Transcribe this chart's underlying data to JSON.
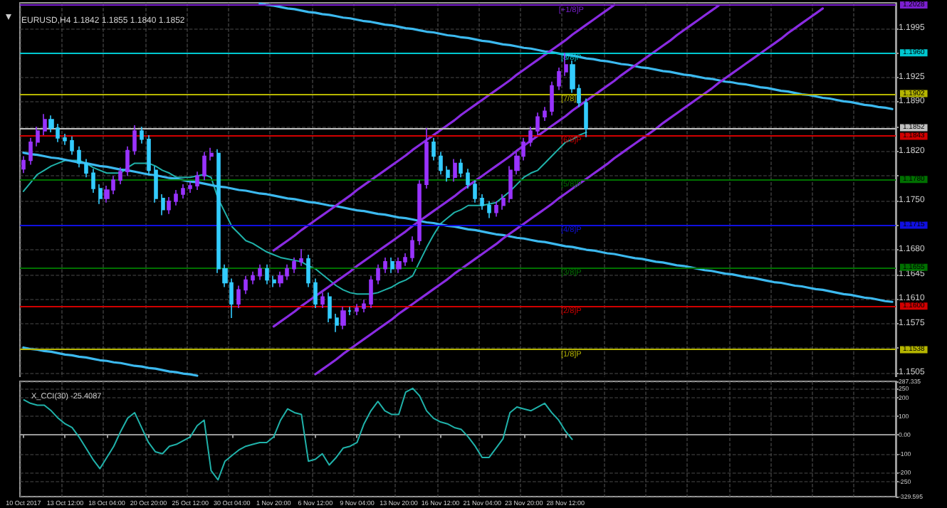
{
  "chart_data": [
    {
      "type": "candlestick",
      "title": "EURUSD,H4 1.1842 1.1855 1.1840 1.1852",
      "categories": [
        "10 Oct 2017",
        null,
        null,
        null,
        null,
        null,
        "13 Oct 12:00",
        null,
        null,
        null,
        null,
        null,
        "18 Oct 04:00",
        null,
        null,
        null,
        null,
        null,
        "20 Oct 20:00",
        null,
        null,
        null,
        null,
        null,
        "25 Oct 12:00",
        null,
        null,
        null,
        null,
        null,
        "30 Oct 04:00",
        null,
        null,
        null,
        null,
        null,
        "1 Nov 20:00",
        null,
        null,
        null,
        null,
        null,
        "6 Nov 12:00",
        null,
        null,
        null,
        null,
        null,
        "9 Nov 04:00",
        null,
        null,
        null,
        null,
        null,
        "13 Nov 20:00",
        null,
        null,
        null,
        null,
        null,
        "16 Nov 12:00",
        null,
        null,
        null,
        null,
        null,
        "21 Nov 04:00",
        null,
        null,
        null,
        null,
        null,
        "23 Nov 20:00",
        null,
        null,
        null,
        null,
        null,
        "28 Nov 12:00",
        null,
        null,
        null,
        null,
        null,
        null,
        null,
        null,
        null,
        null,
        null,
        null,
        null,
        null,
        null,
        null,
        null,
        null,
        null,
        null,
        null,
        null,
        null,
        null,
        null,
        null,
        null,
        null,
        null,
        null,
        null,
        null,
        null,
        null,
        null,
        null,
        null,
        null,
        null,
        null,
        null,
        null,
        null,
        null,
        null,
        null,
        null
      ],
      "ohlc": [
        [
          1.1795,
          1.1813,
          1.1789,
          1.1807
        ],
        [
          1.1807,
          1.1839,
          1.1801,
          1.1833
        ],
        [
          1.1833,
          1.1855,
          1.1827,
          1.1849
        ],
        [
          1.1849,
          1.1873,
          1.1843,
          1.1865
        ],
        [
          1.1865,
          1.1871,
          1.1847,
          1.1853
        ],
        [
          1.1853,
          1.1859,
          1.1833,
          1.1839
        ],
        [
          1.1839,
          1.1845,
          1.1829,
          1.1835
        ],
        [
          1.1835,
          1.1841,
          1.1815,
          1.1821
        ],
        [
          1.1821,
          1.1827,
          1.1797,
          1.1803
        ],
        [
          1.1803,
          1.1809,
          1.1783,
          1.1789
        ],
        [
          1.1789,
          1.1795,
          1.1761,
          1.1767
        ],
        [
          1.1767,
          1.1773,
          1.1745,
          1.1753
        ],
        [
          1.1753,
          1.1771,
          1.1747,
          1.1765
        ],
        [
          1.1765,
          1.1785,
          1.1759,
          1.1779
        ],
        [
          1.1779,
          1.1797,
          1.1773,
          1.1791
        ],
        [
          1.1791,
          1.1827,
          1.1785,
          1.1821
        ],
        [
          1.1821,
          1.1857,
          1.1815,
          1.1849
        ],
        [
          1.1849,
          1.1855,
          1.1831,
          1.1837
        ],
        [
          1.1837,
          1.1843,
          1.1787,
          1.1793
        ],
        [
          1.1793,
          1.1799,
          1.1747,
          1.1753
        ],
        [
          1.1753,
          1.1759,
          1.1729,
          1.1737
        ],
        [
          1.1737,
          1.1755,
          1.1731,
          1.1749
        ],
        [
          1.1749,
          1.1765,
          1.1743,
          1.1759
        ],
        [
          1.1759,
          1.1773,
          1.1753,
          1.1767
        ],
        [
          1.1767,
          1.1777,
          1.1761,
          1.1771
        ],
        [
          1.1771,
          1.1791,
          1.1765,
          1.1785
        ],
        [
          1.1785,
          1.1819,
          1.1779,
          1.1813
        ],
        [
          1.1813,
          1.1825,
          1.1807,
          1.1817
        ],
        [
          1.1817,
          1.1823,
          1.1647,
          1.1653
        ],
        [
          1.1653,
          1.1659,
          1.1627,
          1.1633
        ],
        [
          1.1633,
          1.1639,
          1.1583,
          1.1603
        ],
        [
          1.1603,
          1.1629,
          1.1597,
          1.1623
        ],
        [
          1.1623,
          1.1643,
          1.1617,
          1.1637
        ],
        [
          1.1637,
          1.1649,
          1.1631,
          1.1643
        ],
        [
          1.1643,
          1.1659,
          1.1637,
          1.1653
        ],
        [
          1.1653,
          1.1659,
          1.1631,
          1.1637
        ],
        [
          1.1637,
          1.1643,
          1.1627,
          1.1633
        ],
        [
          1.1633,
          1.1649,
          1.1627,
          1.1643
        ],
        [
          1.1643,
          1.1659,
          1.1637,
          1.1653
        ],
        [
          1.1653,
          1.1669,
          1.1647,
          1.1663
        ],
        [
          1.1663,
          1.1681,
          1.1657,
          1.1667
        ],
        [
          1.1667,
          1.1673,
          1.1627,
          1.1633
        ],
        [
          1.1633,
          1.1639,
          1.1597,
          1.1603
        ],
        [
          1.1603,
          1.1619,
          1.1597,
          1.1613
        ],
        [
          1.1613,
          1.1619,
          1.1577,
          1.1583
        ],
        [
          1.1583,
          1.1589,
          1.1563,
          1.1573
        ],
        [
          1.1573,
          1.1599,
          1.1567,
          1.1593
        ],
        [
          1.1593,
          1.1599,
          1.1587,
          1.1593
        ],
        [
          1.1593,
          1.1603,
          1.1587,
          1.1597
        ],
        [
          1.1597,
          1.1609,
          1.1591,
          1.1603
        ],
        [
          1.1603,
          1.1643,
          1.1597,
          1.1637
        ],
        [
          1.1637,
          1.1659,
          1.1631,
          1.1653
        ],
        [
          1.1653,
          1.1669,
          1.1647,
          1.1663
        ],
        [
          1.1663,
          1.1669,
          1.1647,
          1.1653
        ],
        [
          1.1653,
          1.1669,
          1.1647,
          1.1663
        ],
        [
          1.1663,
          1.1675,
          1.1657,
          1.1669
        ],
        [
          1.1669,
          1.1699,
          1.1663,
          1.1693
        ],
        [
          1.1693,
          1.1779,
          1.1687,
          1.1773
        ],
        [
          1.1773,
          1.1853,
          1.1767,
          1.1833
        ],
        [
          1.1833,
          1.1839,
          1.1807,
          1.1813
        ],
        [
          1.1813,
          1.1819,
          1.1787,
          1.1793
        ],
        [
          1.1793,
          1.1799,
          1.1777,
          1.1783
        ],
        [
          1.1783,
          1.1809,
          1.1777,
          1.1803
        ],
        [
          1.1803,
          1.1809,
          1.1783,
          1.1789
        ],
        [
          1.1789,
          1.1795,
          1.1767,
          1.1773
        ],
        [
          1.1773,
          1.1779,
          1.1747,
          1.1753
        ],
        [
          1.1753,
          1.1759,
          1.1737,
          1.1743
        ],
        [
          1.1743,
          1.1749,
          1.1725,
          1.1733
        ],
        [
          1.1733,
          1.1749,
          1.1727,
          1.1743
        ],
        [
          1.1743,
          1.1759,
          1.1737,
          1.1753
        ],
        [
          1.1753,
          1.1799,
          1.1747,
          1.1793
        ],
        [
          1.1793,
          1.1819,
          1.1787,
          1.1813
        ],
        [
          1.1813,
          1.1839,
          1.1807,
          1.1833
        ],
        [
          1.1833,
          1.1855,
          1.1827,
          1.1849
        ],
        [
          1.1849,
          1.1875,
          1.1843,
          1.1869
        ],
        [
          1.1869,
          1.1883,
          1.1863,
          1.1877
        ],
        [
          1.1877,
          1.1919,
          1.1871,
          1.1913
        ],
        [
          1.1913,
          1.1939,
          1.1907,
          1.1933
        ],
        [
          1.1933,
          1.196,
          1.1927,
          1.1943
        ],
        [
          1.1943,
          1.1949,
          1.1903,
          1.1909
        ],
        [
          1.1909,
          1.1915,
          1.1883,
          1.1889
        ],
        [
          1.1889,
          1.1895,
          1.184,
          1.1852
        ],
        null,
        null,
        null,
        null,
        null,
        null,
        null,
        null,
        null,
        null,
        null,
        null,
        null,
        null,
        null,
        null,
        null,
        null,
        null,
        null,
        null,
        null,
        null,
        null,
        null,
        null,
        null,
        null,
        null,
        null,
        null,
        null,
        null,
        null,
        null,
        null,
        null,
        null,
        null,
        null,
        null,
        null,
        null,
        null
      ],
      "colors": [
        "#9933ff",
        "#9933ff",
        "#9933ff",
        "#9933ff",
        "#33ccff",
        "#33ccff",
        "#33ccff",
        "#33ccff",
        "#33ccff",
        "#33ccff",
        "#33ccff",
        "#33ccff",
        "#9933ff",
        "#9933ff",
        "#9933ff",
        "#9933ff",
        "#9933ff",
        "#33ccff",
        "#33ccff",
        "#33ccff",
        "#33ccff",
        "#9933ff",
        "#9933ff",
        "#9933ff",
        "#9933ff",
        "#9933ff",
        "#9933ff",
        "#9933ff",
        "#33ccff",
        "#33ccff",
        "#33ccff",
        "#9933ff",
        "#9933ff",
        "#9933ff",
        "#9933ff",
        "#33ccff",
        "#33ccff",
        "#9933ff",
        "#9933ff",
        "#9933ff",
        "#9933ff",
        "#33ccff",
        "#33ccff",
        "#9933ff",
        "#33ccff",
        "#33ccff",
        "#9933ff",
        "#33ccff",
        "#9933ff",
        "#9933ff",
        "#9933ff",
        "#9933ff",
        "#9933ff",
        "#33ccff",
        "#9933ff",
        "#9933ff",
        "#9933ff",
        "#9933ff",
        "#9933ff",
        "#33ccff",
        "#33ccff",
        "#33ccff",
        "#9933ff",
        "#33ccff",
        "#33ccff",
        "#33ccff",
        "#33ccff",
        "#33ccff",
        "#9933ff",
        "#9933ff",
        "#9933ff",
        "#9933ff",
        "#9933ff",
        "#9933ff",
        "#9933ff",
        "#9933ff",
        "#9933ff",
        "#9933ff",
        "#9933ff",
        "#33ccff",
        "#33ccff",
        "#33ccff",
        null,
        null,
        null,
        null,
        null,
        null,
        null,
        null,
        null,
        null,
        null,
        null,
        null,
        null,
        null,
        null,
        null,
        null,
        null,
        null,
        null,
        null,
        null,
        null,
        null,
        null,
        null,
        null,
        null,
        null,
        null,
        null,
        null,
        null,
        null,
        null,
        null,
        null,
        null,
        null,
        null,
        null,
        null,
        null
      ],
      "series": [
        {
          "type": "line",
          "color": "#20b2aa",
          "values": [
            1.1763,
            1.1775,
            1.1787,
            1.1793,
            1.1799,
            1.1803,
            1.1807,
            1.1807,
            1.1807,
            1.1803,
            1.1797,
            1.1793,
            1.1789,
            1.1789,
            1.1789,
            1.1797,
            1.1803,
            1.1803,
            1.1803,
            1.1799,
            1.1793,
            1.1789,
            1.1783,
            1.1783,
            1.1783,
            1.1785,
            1.1787,
            1.1783,
            1.1753,
            1.1733,
            1.1713,
            1.1703,
            1.1693,
            1.1689,
            1.1683,
            1.1677,
            1.1673,
            1.1669,
            1.1667,
            1.1665,
            1.1663,
            1.1657,
            1.1653,
            1.1645,
            1.1637,
            1.1629,
            1.1623,
            1.1619,
            1.1617,
            1.1617,
            1.1617,
            1.1619,
            1.1623,
            1.1627,
            1.1633,
            1.1637,
            1.1643,
            1.1663,
            1.1683,
            1.1701,
            1.1717,
            1.1725,
            1.1733,
            1.1737,
            1.1743,
            1.1743,
            1.1743,
            1.1745,
            1.1747,
            1.1755,
            1.1763,
            1.1773,
            1.1783,
            1.1789,
            1.1793,
            1.1803,
            1.1813,
            1.1823,
            1.1833,
            1.1837,
            1.1843,
            1.1847,
            null,
            null,
            null,
            null,
            null,
            null,
            null,
            null,
            null,
            null,
            null,
            null,
            null,
            null,
            null,
            null,
            null,
            null,
            null,
            null,
            null,
            null,
            null,
            null,
            null,
            null,
            null,
            null,
            null,
            null,
            null,
            null,
            null,
            null,
            null,
            null,
            null,
            null,
            null,
            null,
            null,
            null,
            null,
            null
          ]
        },
        {
          "type": "line",
          "color": "#3cb9ef",
          "values": [
            null,
            null,
            null,
            null,
            null,
            null,
            null,
            null,
            null,
            null,
            null,
            null,
            null,
            null,
            null,
            null,
            null,
            null,
            null,
            null,
            null,
            null,
            null,
            null,
            null,
            null,
            null,
            null,
            null,
            null,
            null,
            null,
            null,
            null,
            1.203,
            1.2028,
            1.2027,
            1.2025,
            1.2023,
            1.2022,
            1.202,
            1.2018,
            1.2017,
            1.2015,
            1.2014,
            1.2012,
            1.201,
            1.2009,
            1.2007,
            1.2005,
            1.2004,
            1.2002,
            1.2,
            1.1999,
            1.1997,
            1.1995,
            1.1994,
            1.1992,
            1.199,
            1.1989,
            1.1987,
            1.1985,
            1.1984,
            1.1982,
            1.1981,
            1.1979,
            1.1977,
            1.1976,
            1.1974,
            1.1972,
            1.1971,
            1.1969,
            1.1967,
            1.1966,
            1.1964,
            1.1962,
            1.1961,
            1.1959,
            1.1957,
            1.1956,
            1.1954,
            1.1952,
            1.1951,
            1.1949,
            1.1948,
            1.1946,
            1.1944,
            1.1943,
            1.1941,
            1.1939,
            1.1938,
            1.1936,
            1.1934,
            1.1933,
            1.1931,
            1.1929,
            1.1928,
            1.1926,
            1.1924,
            1.1923,
            1.1921,
            1.1919,
            1.1918,
            1.1916,
            1.1915,
            1.1913,
            1.1911,
            1.191,
            1.1908,
            1.1906,
            1.1905,
            1.1903,
            1.1901,
            1.19,
            1.1898,
            1.1896,
            1.1895,
            1.1893,
            1.1891,
            1.189,
            1.1888,
            1.1886,
            1.1885,
            1.1883,
            1.1882,
            1.188
          ]
        },
        {
          "type": "line",
          "color": "#3cb9ef",
          "values": [
            1.1818,
            1.1816,
            1.1815,
            1.1813,
            1.1811,
            1.181,
            1.1808,
            1.1806,
            1.1804,
            1.1803,
            1.1801,
            1.1799,
            1.1798,
            1.1796,
            1.1794,
            1.1793,
            1.1791,
            1.1789,
            1.1787,
            1.1786,
            1.1784,
            1.1782,
            1.1781,
            1.1779,
            1.1777,
            1.1776,
            1.1774,
            1.1772,
            1.177,
            1.1769,
            1.1767,
            1.1765,
            1.1764,
            1.1762,
            1.176,
            1.1759,
            1.1757,
            1.1755,
            1.1753,
            1.1752,
            1.175,
            1.1748,
            1.1747,
            1.1745,
            1.1743,
            1.1742,
            1.174,
            1.1738,
            1.1736,
            1.1735,
            1.1733,
            1.1731,
            1.173,
            1.1728,
            1.1726,
            1.1725,
            1.1723,
            1.1721,
            1.1719,
            1.1718,
            1.1716,
            1.1714,
            1.1713,
            1.1711,
            1.1709,
            1.1708,
            1.1706,
            1.1704,
            1.1702,
            1.1701,
            1.1699,
            1.1697,
            1.1696,
            1.1694,
            1.1692,
            1.1691,
            1.1689,
            1.1687,
            1.1685,
            1.1684,
            1.1682,
            1.168,
            1.1679,
            1.1677,
            1.1675,
            1.1674,
            1.1672,
            1.167,
            1.1668,
            1.1667,
            1.1665,
            1.1663,
            1.1662,
            1.166,
            1.1658,
            1.1657,
            1.1655,
            1.1653,
            1.1651,
            1.165,
            1.1648,
            1.1646,
            1.1645,
            1.1643,
            1.1641,
            1.164,
            1.1638,
            1.1636,
            1.1634,
            1.1633,
            1.1631,
            1.1629,
            1.1628,
            1.1626,
            1.1624,
            1.1623,
            1.1621,
            1.1619,
            1.1617,
            1.1616,
            1.1614,
            1.1612,
            1.1611,
            1.1609,
            1.1607,
            1.1606
          ]
        },
        {
          "type": "line",
          "color": "#3cb9ef",
          "values": [
            1.1541,
            1.1539,
            1.1538,
            1.1536,
            1.1535,
            1.1533,
            1.1531,
            1.153,
            1.1528,
            1.1527,
            1.1525,
            1.1523,
            1.1522,
            1.152,
            1.1519,
            1.1517,
            1.1515,
            1.1514,
            1.1512,
            1.1511,
            1.1509,
            1.1507,
            1.1506,
            1.1504,
            1.1503,
            1.1501,
            null,
            null,
            null,
            null,
            null,
            null,
            null,
            null,
            null,
            null,
            null,
            null,
            null,
            null,
            null,
            null,
            null,
            null,
            null,
            null,
            null,
            null,
            null,
            null,
            null,
            null,
            null,
            null,
            null,
            null,
            null,
            null,
            null,
            null,
            null,
            null,
            null,
            null,
            null,
            null,
            null,
            null,
            null,
            null,
            null,
            null,
            null,
            null,
            null,
            null,
            null,
            null,
            null,
            null,
            null,
            null,
            null,
            null,
            null,
            null,
            null,
            null,
            null,
            null,
            null,
            null,
            null,
            null,
            null,
            null,
            null,
            null,
            null,
            null,
            null,
            null,
            null,
            null,
            null,
            null,
            null,
            null,
            null,
            null,
            null,
            null,
            null,
            null,
            null,
            null,
            null,
            null,
            null,
            null,
            null,
            null,
            null,
            null,
            null,
            null
          ]
        },
        {
          "type": "line",
          "color": "#8a2be2",
          "values": [
            null,
            null,
            null,
            null,
            null,
            null,
            null,
            null,
            null,
            null,
            null,
            null,
            null,
            null,
            null,
            null,
            null,
            null,
            null,
            null,
            null,
            null,
            null,
            null,
            null,
            null,
            null,
            null,
            null,
            null,
            null,
            null,
            null,
            null,
            null,
            null,
            1.1679,
            1.1686,
            1.1693,
            1.17,
            1.1708,
            1.1715,
            1.1722,
            1.1729,
            1.1736,
            1.1743,
            1.175,
            1.1757,
            1.1765,
            1.1772,
            1.1779,
            1.1786,
            1.1793,
            1.18,
            1.1807,
            1.1814,
            1.1822,
            1.1829,
            1.1836,
            1.1843,
            1.185,
            1.1857,
            1.1864,
            1.1872,
            1.1879,
            1.1886,
            1.1893,
            1.19,
            1.1907,
            1.1914,
            1.1921,
            1.1929,
            1.1936,
            1.1943,
            1.195,
            1.1957,
            1.1964,
            1.1971,
            1.1978,
            1.1986,
            1.1993,
            1.2,
            1.2007,
            1.2014,
            1.2021,
            1.2028,
            null,
            null,
            null,
            null,
            null,
            null,
            null,
            null,
            null,
            null,
            null,
            null,
            null,
            null,
            null,
            null,
            null,
            null,
            null,
            null,
            null,
            null,
            null,
            null,
            null,
            null,
            null,
            null,
            null,
            null,
            null,
            null,
            null,
            null,
            null,
            null,
            null,
            null,
            null,
            null
          ]
        },
        {
          "type": "line",
          "color": "#8a2be2",
          "values": [
            null,
            null,
            null,
            null,
            null,
            null,
            null,
            null,
            null,
            null,
            null,
            null,
            null,
            null,
            null,
            null,
            null,
            null,
            null,
            null,
            null,
            null,
            null,
            null,
            null,
            null,
            null,
            null,
            null,
            null,
            null,
            null,
            null,
            null,
            null,
            null,
            1.1571,
            1.1578,
            1.1585,
            1.1592,
            1.16,
            1.1607,
            1.1614,
            1.1621,
            1.1628,
            1.1635,
            1.1642,
            1.1649,
            1.1657,
            1.1664,
            1.1671,
            1.1678,
            1.1685,
            1.1692,
            1.1699,
            1.1706,
            1.1714,
            1.1721,
            1.1728,
            1.1735,
            1.1742,
            1.1749,
            1.1756,
            1.1764,
            1.1771,
            1.1778,
            1.1785,
            1.1792,
            1.1799,
            1.1806,
            1.1813,
            1.1821,
            1.1828,
            1.1835,
            1.1842,
            1.1849,
            1.1856,
            1.1863,
            1.187,
            1.1878,
            1.1885,
            1.1892,
            1.1899,
            1.1906,
            1.1913,
            1.192,
            1.1928,
            1.1935,
            1.1942,
            1.1949,
            1.1956,
            1.1963,
            1.197,
            1.1977,
            1.1985,
            1.1992,
            1.1999,
            1.2006,
            1.2013,
            1.202,
            1.2027,
            null,
            null,
            null,
            null,
            null,
            null,
            null,
            null,
            null,
            null,
            null,
            null,
            null,
            null,
            null,
            null,
            null,
            null,
            null,
            null,
            null,
            null,
            null,
            null,
            null
          ]
        },
        {
          "type": "line",
          "color": "#8a2be2",
          "values": [
            null,
            null,
            null,
            null,
            null,
            null,
            null,
            null,
            null,
            null,
            null,
            null,
            null,
            null,
            null,
            null,
            null,
            null,
            null,
            null,
            null,
            null,
            null,
            null,
            null,
            null,
            null,
            null,
            null,
            null,
            null,
            null,
            null,
            null,
            null,
            null,
            null,
            null,
            null,
            null,
            null,
            null,
            1.1503,
            1.151,
            1.1517,
            1.1524,
            1.1532,
            1.1539,
            1.1546,
            1.1553,
            1.156,
            1.1567,
            1.1574,
            1.1581,
            1.1589,
            1.1596,
            1.1603,
            1.161,
            1.1617,
            1.1624,
            1.1631,
            1.1638,
            1.1646,
            1.1653,
            1.166,
            1.1667,
            1.1674,
            1.1681,
            1.1688,
            1.1696,
            1.1703,
            1.171,
            1.1717,
            1.1724,
            1.1731,
            1.1738,
            1.1745,
            1.1753,
            1.176,
            1.1767,
            1.1774,
            1.1781,
            1.1788,
            1.1795,
            1.1802,
            1.181,
            1.1817,
            1.1824,
            1.1831,
            1.1838,
            1.1845,
            1.1852,
            1.186,
            1.1867,
            1.1874,
            1.1881,
            1.1888,
            1.1895,
            1.1902,
            1.1909,
            1.1917,
            1.1924,
            1.1931,
            1.1938,
            1.1945,
            1.1952,
            1.1959,
            1.1966,
            1.1973,
            1.198,
            1.1988,
            1.1995,
            1.2002,
            1.2009,
            1.2016,
            1.2023,
            null,
            null,
            null,
            null,
            null,
            null,
            null,
            null,
            null,
            null
          ]
        }
      ],
      "ref_lines": [
        {
          "axis": "y",
          "value": 1.2028,
          "label": "1.2028",
          "color": "#7b1fd0"
        },
        {
          "axis": "y",
          "value": 1.196,
          "label": "1.1960",
          "color": "#00c8d0"
        },
        {
          "axis": "y",
          "value": 1.1902,
          "label": "1.1902",
          "color": "#b5b500"
        },
        {
          "axis": "y",
          "value": 1.1852,
          "label": "1.1852",
          "color": "#c0c0c0"
        },
        {
          "axis": "y",
          "value": 1.1843,
          "label": "1.1843",
          "color": "#d00000"
        },
        {
          "axis": "y",
          "value": 1.178,
          "label": "1.1780",
          "color": "#007000"
        },
        {
          "axis": "y",
          "value": 1.1715,
          "label": "1.1715",
          "color": "#1010e0"
        },
        {
          "axis": "y",
          "value": 1.1655,
          "label": "1.1655",
          "color": "#007000"
        },
        {
          "axis": "y",
          "value": 1.16,
          "label": "1.1600",
          "color": "#d00000"
        },
        {
          "axis": "y",
          "value": 1.1538,
          "label": "1.1538",
          "color": "#b5b500"
        }
      ],
      "annotations": [
        {
          "text": "[+1/8]P",
          "x": "28 Nov 12:00",
          "y": 1.2028
        },
        {
          "text": "[8/8]P",
          "x": "28 Nov 12:00",
          "y": 1.196
        },
        {
          "text": "[7/8]P",
          "x": "28 Nov 12:00",
          "y": 1.1902
        },
        {
          "text": "[6/8]P",
          "x": "28 Nov 12:00",
          "y": 1.1843
        },
        {
          "text": "[5/8]P",
          "x": "28 Nov 12:00",
          "y": 1.178
        },
        {
          "text": "[4/8]P",
          "x": "28 Nov 12:00",
          "y": 1.1715
        },
        {
          "text": "[3/8]P",
          "x": "28 Nov 12:00",
          "y": 1.1655
        },
        {
          "text": "[2/8]P",
          "x": "28 Nov 12:00",
          "y": 1.16
        },
        {
          "text": "[1/8]P",
          "x": "28 Nov 12:00",
          "y": 1.1538
        }
      ],
      "ylim": [
        1.1497,
        1.2031
      ],
      "yticks": [
        1.1505,
        {
          "value": 1.154,
          "label": null
        },
        1.1575,
        {
          "value": 1.161,
          "label": "1.1610"
        },
        1.1645,
        {
          "value": 1.168,
          "label": "1.1680"
        },
        {
          "value": 1.1715,
          "label": null
        },
        {
          "value": 1.175,
          "label": "1.1750"
        },
        {
          "value": 1.1785,
          "label": null
        },
        {
          "value": 1.182,
          "label": "1.1820"
        },
        {
          "value": 1.1855,
          "label": null
        },
        {
          "value": 1.189,
          "label": "1.1890"
        },
        1.1925,
        {
          "value": 1.196,
          "label": null
        },
        1.1995
      ],
      "grid": true,
      "tick_labels": "y"
    },
    {
      "type": "line",
      "title": "X_CCI(30) -25.4087",
      "color": "#20b2aa",
      "categories": [
        "10 Oct 2017",
        null,
        null,
        null,
        null,
        null,
        "13 Oct 12:00",
        null,
        null,
        null,
        null,
        null,
        "18 Oct 04:00",
        null,
        null,
        null,
        null,
        null,
        "20 Oct 20:00",
        null,
        null,
        null,
        null,
        null,
        "25 Oct 12:00",
        null,
        null,
        null,
        null,
        null,
        "30 Oct 04:00",
        null,
        null,
        null,
        null,
        null,
        "1 Nov 20:00",
        null,
        null,
        null,
        null,
        null,
        "6 Nov 12:00",
        null,
        null,
        null,
        null,
        null,
        "9 Nov 04:00",
        null,
        null,
        null,
        null,
        null,
        "13 Nov 20:00",
        null,
        null,
        null,
        null,
        null,
        "16 Nov 12:00",
        null,
        null,
        null,
        null,
        null,
        "21 Nov 04:00",
        null,
        null,
        null,
        null,
        null,
        "23 Nov 20:00",
        null,
        null,
        null,
        null,
        null,
        "28 Nov 12:00",
        null,
        null,
        null,
        null,
        null,
        null,
        null,
        null,
        null,
        null,
        null,
        null,
        null,
        null,
        null,
        null,
        null,
        null,
        null,
        null,
        null,
        null,
        null,
        null,
        null,
        null,
        null,
        null,
        null,
        null,
        null,
        null,
        null,
        null,
        null,
        null,
        null,
        null,
        null,
        null,
        null,
        null,
        null,
        null,
        null,
        null,
        null
      ],
      "values": [
        190,
        170,
        160,
        160,
        130,
        90,
        60,
        40,
        -10,
        -70,
        -130,
        -180,
        -120,
        -60,
        20,
        90,
        120,
        40,
        -40,
        -90,
        -100,
        -60,
        -50,
        -30,
        -10,
        50,
        80,
        -190,
        -240,
        -140,
        -110,
        -80,
        -60,
        -50,
        -40,
        -40,
        -10,
        80,
        140,
        120,
        110,
        -140,
        -130,
        -100,
        -160,
        -120,
        -70,
        -60,
        -40,
        60,
        130,
        180,
        130,
        110,
        110,
        230,
        250,
        210,
        130,
        90,
        70,
        60,
        40,
        30,
        -10,
        -60,
        -120,
        -120,
        -70,
        -20,
        120,
        150,
        140,
        130,
        150,
        170,
        120,
        80,
        20,
        -25.4087,
        null,
        null,
        null,
        null,
        null,
        null,
        null,
        null,
        null,
        null,
        null,
        null,
        null,
        null,
        null,
        null,
        null,
        null,
        null,
        null,
        null,
        null,
        null,
        null,
        null,
        null,
        null,
        null,
        null,
        null,
        null,
        null,
        null,
        null,
        null,
        null,
        null,
        null,
        null,
        null,
        null,
        null,
        null,
        null,
        null,
        null
      ],
      "ylim": [
        -329.595,
        287.335
      ],
      "yticks": [
        -329.595,
        -250,
        -200,
        -100,
        {
          "value": 0,
          "label": "0.00"
        },
        100,
        200,
        250,
        287.335
      ],
      "grid": true
    }
  ]
}
